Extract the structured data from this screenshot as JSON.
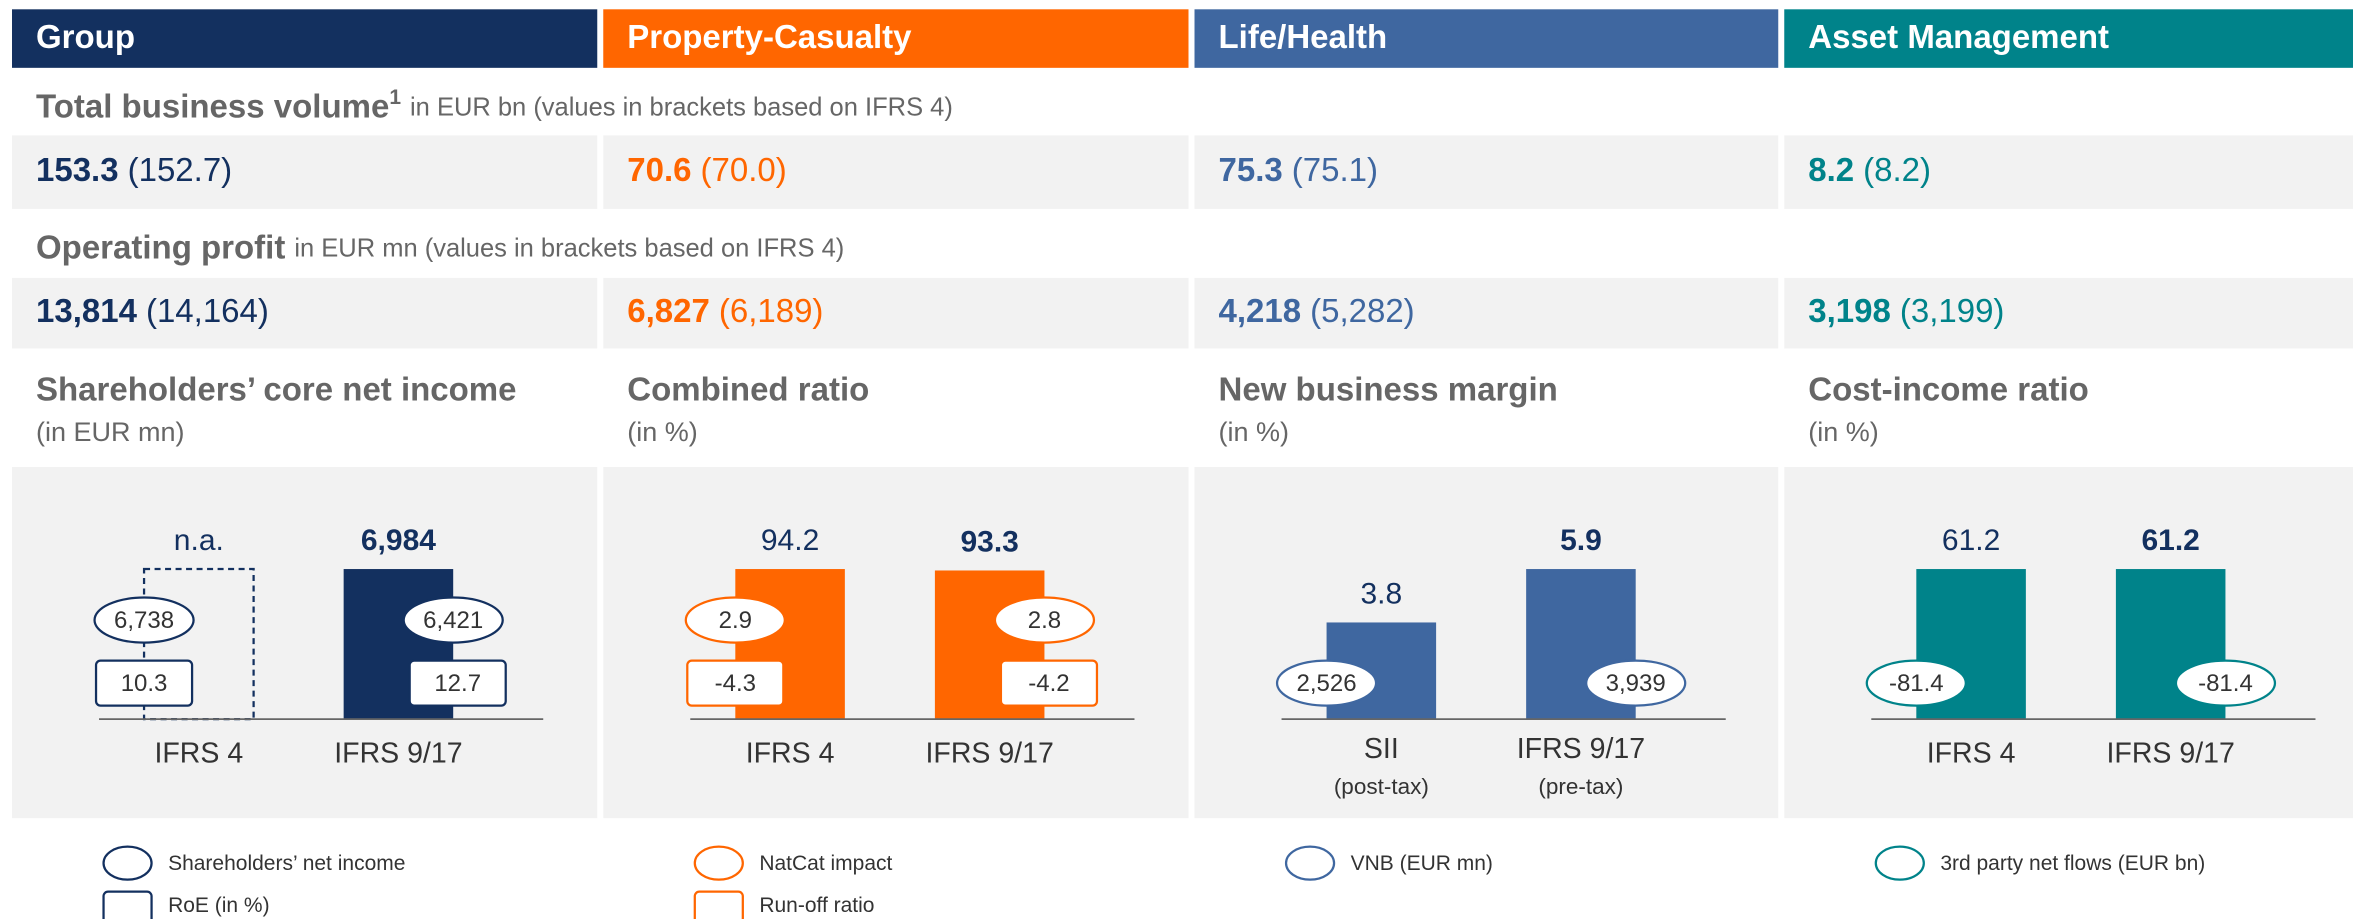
{
  "segments": [
    {
      "name": "Group",
      "color": "#13305f"
    },
    {
      "name": "Property-Casualty",
      "color": "#ff6600"
    },
    {
      "name": "Life/Health",
      "color": "#3f67a0"
    },
    {
      "name": "Asset Management",
      "color": "#00838a"
    }
  ],
  "metrics": [
    {
      "title": "Total business volume",
      "footnote": "1",
      "unit": "in EUR bn (values in brackets based on IFRS 4)",
      "values": [
        {
          "value": "153.3",
          "bracket": "(152.7)"
        },
        {
          "value": "70.6",
          "bracket": "(70.0)"
        },
        {
          "value": "75.3",
          "bracket": "(75.1)"
        },
        {
          "value": "8.2",
          "bracket": "(8.2)"
        }
      ]
    },
    {
      "title": "Operating profit",
      "unit": "in EUR mn (values in brackets based on IFRS 4)",
      "values": [
        {
          "value": "13,814",
          "bracket": "(14,164)"
        },
        {
          "value": "6,827",
          "bracket": "(6,189)"
        },
        {
          "value": "4,218",
          "bracket": "(5,282)"
        },
        {
          "value": "3,198",
          "bracket": "(3,199)"
        }
      ]
    }
  ],
  "chart_data": [
    {
      "type": "bar",
      "title": "Shareholders’ core net income",
      "subtitle": "(in EUR mn)",
      "color": "#13305f",
      "categories": [
        "IFRS 4",
        "IFRS 9/17"
      ],
      "values": [
        null,
        6984
      ],
      "value_labels": [
        "n.a.",
        "6,984"
      ],
      "ellipse": {
        "name": "Shareholders’ net income",
        "values": [
          6738,
          6421
        ],
        "value_labels": [
          "6,738",
          "6,421"
        ]
      },
      "box": {
        "name": "RoE (in %)",
        "values": [
          10.3,
          12.7
        ]
      }
    },
    {
      "type": "bar",
      "title": "Combined ratio",
      "subtitle": "(in %)",
      "color": "#ff6600",
      "categories": [
        "IFRS 4",
        "IFRS 9/17"
      ],
      "values": [
        94.2,
        93.3
      ],
      "ellipse": {
        "name": "NatCat impact",
        "values": [
          2.9,
          2.8
        ]
      },
      "box": {
        "name": "Run-off ratio",
        "values": [
          -4.3,
          -4.2
        ]
      }
    },
    {
      "type": "bar",
      "title": "New business margin",
      "subtitle": "(in %)",
      "color": "#3f67a0",
      "categories": [
        "SII",
        "IFRS 9/17"
      ],
      "category_notes": [
        "(post-tax)",
        "(pre-tax)"
      ],
      "values": [
        3.8,
        5.9
      ],
      "ellipse": {
        "name": "VNB (EUR mn)",
        "values": [
          2526,
          3939
        ],
        "value_labels": [
          "2,526",
          "3,939"
        ]
      }
    },
    {
      "type": "bar",
      "title": "Cost-income ratio",
      "subtitle": "(in %)",
      "color": "#00838a",
      "categories": [
        "IFRS 4",
        "IFRS 9/17"
      ],
      "values": [
        61.2,
        61.2
      ],
      "ellipse": {
        "name": "3rd party net flows (EUR bn)",
        "values": [
          -81.4,
          -81.4
        ]
      }
    }
  ]
}
